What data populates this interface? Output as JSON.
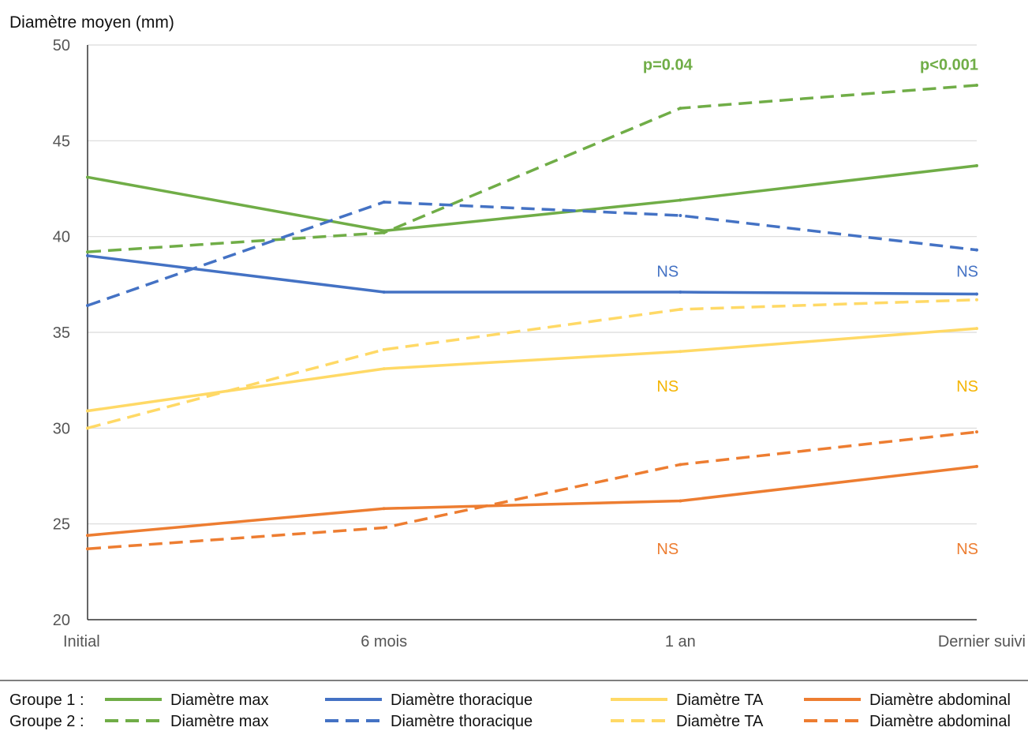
{
  "chart_data": {
    "type": "line",
    "ylabel": "Diamètre moyen (mm)",
    "xlabel": "",
    "categories": [
      "Initial",
      "6 mois",
      "1 an",
      "Dernier suivi"
    ],
    "ylim": [
      20,
      50
    ],
    "yticks": [
      20,
      25,
      30,
      35,
      40,
      45,
      50
    ],
    "grid": true,
    "colors": {
      "max": "#70ad47",
      "thoracique": "#4472c4",
      "ta": "#ffd966",
      "abdominal": "#ed7d31"
    },
    "series": [
      {
        "name": "Diamètre max",
        "group": "Groupe 1",
        "style": "solid",
        "color": "#70ad47",
        "values": [
          43.1,
          40.3,
          41.9,
          43.7
        ]
      },
      {
        "name": "Diamètre max",
        "group": "Groupe 2",
        "style": "dashed",
        "color": "#70ad47",
        "values": [
          39.2,
          40.2,
          46.7,
          47.9
        ]
      },
      {
        "name": "Diamètre thoracique",
        "group": "Groupe 1",
        "style": "solid",
        "color": "#4472c4",
        "values": [
          39.0,
          37.1,
          37.1,
          37.0
        ]
      },
      {
        "name": "Diamètre thoracique",
        "group": "Groupe 2",
        "style": "dashed",
        "color": "#4472c4",
        "values": [
          36.4,
          41.8,
          41.1,
          39.3
        ]
      },
      {
        "name": "Diamètre TA",
        "group": "Groupe 1",
        "style": "solid",
        "color": "#ffd966",
        "values": [
          30.9,
          33.1,
          34.0,
          35.2
        ]
      },
      {
        "name": "Diamètre TA",
        "group": "Groupe 2",
        "style": "dashed",
        "color": "#ffd966",
        "values": [
          30.0,
          34.1,
          36.2,
          36.7
        ]
      },
      {
        "name": "Diamètre abdominal",
        "group": "Groupe 1",
        "style": "solid",
        "color": "#ed7d31",
        "values": [
          24.4,
          25.8,
          26.2,
          28.0
        ]
      },
      {
        "name": "Diamètre abdominal",
        "group": "Groupe 2",
        "style": "dashed",
        "color": "#ed7d31",
        "values": [
          23.7,
          24.8,
          28.1,
          29.8
        ]
      }
    ],
    "annotations": [
      {
        "text": "p=0.04",
        "category": "1 an",
        "y": 49.0,
        "color": "#70ad47",
        "bold": true
      },
      {
        "text": "p<0.001",
        "category": "Dernier suivi",
        "y": 49.0,
        "color": "#70ad47",
        "bold": true
      },
      {
        "text": "NS",
        "category": "1 an",
        "y": 38.2,
        "color": "#4472c4",
        "bold": false
      },
      {
        "text": "NS",
        "category": "Dernier suivi",
        "y": 38.2,
        "color": "#4472c4",
        "bold": false
      },
      {
        "text": "NS",
        "category": "1 an",
        "y": 32.2,
        "color": "#f4b400",
        "bold": false
      },
      {
        "text": "NS",
        "category": "Dernier suivi",
        "y": 32.2,
        "color": "#f4b400",
        "bold": false
      },
      {
        "text": "NS",
        "category": "1 an",
        "y": 23.7,
        "color": "#ed7d31",
        "bold": false
      },
      {
        "text": "NS",
        "category": "Dernier suivi",
        "y": 23.7,
        "color": "#ed7d31",
        "bold": false
      }
    ],
    "legend": {
      "placement": "bottom",
      "rows": [
        {
          "label": "Groupe 1 :",
          "style": "solid"
        },
        {
          "label": "Groupe 2 :",
          "style": "dashed"
        }
      ],
      "entries": [
        {
          "name": "Diamètre max",
          "color": "#70ad47"
        },
        {
          "name": "Diamètre thoracique",
          "color": "#4472c4"
        },
        {
          "name": "Diamètre TA",
          "color": "#ffd966"
        },
        {
          "name": "Diamètre abdominal",
          "color": "#ed7d31"
        }
      ]
    }
  }
}
